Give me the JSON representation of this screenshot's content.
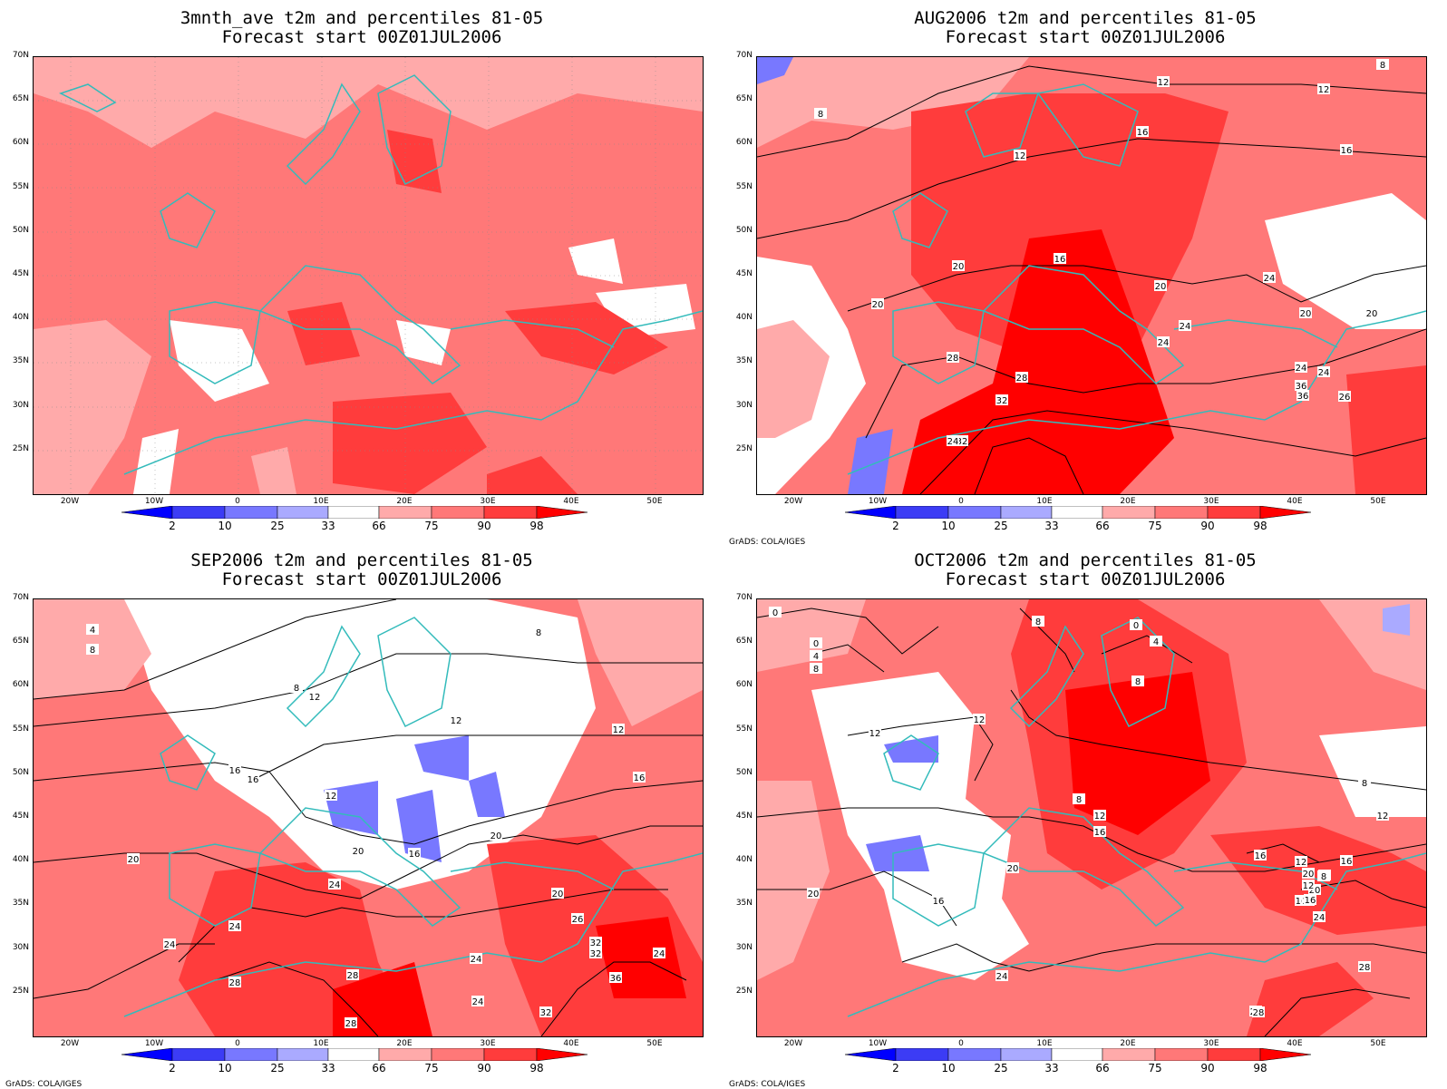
{
  "panels": [
    {
      "title1": "3mnth_ave t2m and percentiles 81-05",
      "title2": "Forecast start 00Z01JUL2006",
      "credit": ""
    },
    {
      "title1": "AUG2006 t2m and percentiles 81-05",
      "title2": "Forecast start 00Z01JUL2006",
      "credit": "GrADS: COLA/IGES"
    },
    {
      "title1": "SEP2006 t2m and percentiles 81-05",
      "title2": "Forecast start 00Z01JUL2006",
      "credit": "GrADS: COLA/IGES"
    },
    {
      "title1": "OCT2006 t2m and percentiles 81-05",
      "title2": "Forecast start 00Z01JUL2006",
      "credit": "GrADS: COLA/IGES"
    }
  ],
  "lat_labels": [
    "70N",
    "65N",
    "60N",
    "55N",
    "50N",
    "45N",
    "40N",
    "35N",
    "30N",
    "25N"
  ],
  "lon_labels": [
    "20W",
    "10W",
    "0",
    "10E",
    "20E",
    "30E",
    "40E",
    "50E"
  ],
  "colorbar": {
    "labels": [
      "2",
      "10",
      "25",
      "33",
      "66",
      "75",
      "90",
      "98"
    ],
    "colors": [
      "#0000ff",
      "#3c3cf5",
      "#7878ff",
      "#aaaaff",
      "#ffffff",
      "#ffaaaa",
      "#ff7878",
      "#ff3c3c",
      "#ff0000",
      "#ff0000"
    ]
  },
  "contour_labels": {
    "aug": [
      "8",
      "8",
      "12",
      "12",
      "12",
      "16",
      "16",
      "16",
      "20",
      "20",
      "20",
      "20",
      "20",
      "24",
      "24",
      "24",
      "24",
      "24",
      "28",
      "28",
      "32",
      "32",
      "36",
      "36",
      "26",
      "24"
    ],
    "sep": [
      "4",
      "8",
      "8",
      "8",
      "12",
      "12",
      "12",
      "12",
      "16",
      "16",
      "16",
      "16",
      "20",
      "20",
      "20",
      "20",
      "24",
      "24",
      "24",
      "24",
      "24",
      "28",
      "28",
      "32",
      "32",
      "36",
      "26",
      "24",
      "28",
      "32"
    ],
    "oct": [
      "0",
      "0",
      "4",
      "8",
      "8",
      "0",
      "4",
      "8",
      "8",
      "12",
      "12",
      "12",
      "16",
      "8",
      "12",
      "16",
      "16",
      "20",
      "20",
      "20",
      "16",
      "12",
      "8",
      "16",
      "20",
      "24",
      "24",
      "28",
      "28",
      "28",
      "12",
      "8",
      "16",
      "24",
      "20"
    ]
  },
  "legend_colors": {
    "blue_strong": "#3a3aff",
    "blue_light": "#aaaaff",
    "white": "#ffffff",
    "pink": "#ffaaaa",
    "salmon": "#ff7878",
    "red": "#ff3c3c",
    "deep_red": "#ff0000",
    "coast": "#33bbbb"
  }
}
